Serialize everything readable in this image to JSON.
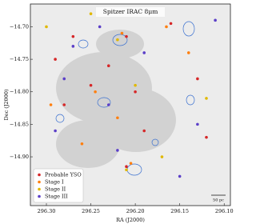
{
  "chart_data": {
    "type": "scatter",
    "title": "Spitzer IRAC 8μm",
    "x_label": "RA (J2000)",
    "y_label": "Dec (J2000)",
    "xlim": [
      296.318,
      296.093
    ],
    "ylim": [
      -14.975,
      -14.665
    ],
    "xticks": [
      {
        "value": 296.3,
        "label": "296.30"
      },
      {
        "value": 296.25,
        "label": "296.25"
      },
      {
        "value": 296.2,
        "label": "296.20"
      },
      {
        "value": 296.15,
        "label": "296.15"
      },
      {
        "value": 296.1,
        "label": "296.10"
      }
    ],
    "yticks": [
      {
        "value": -14.7,
        "label": "−14.70"
      },
      {
        "value": -14.75,
        "label": "−14.75"
      },
      {
        "value": -14.8,
        "label": "−14.80"
      },
      {
        "value": -14.85,
        "label": "−14.85"
      },
      {
        "value": -14.9,
        "label": "−14.90"
      }
    ],
    "grid": false,
    "legend": "lower left",
    "scale_bar": "50 pc",
    "series": [
      {
        "name": "Probable YSO",
        "color": "#d62728",
        "x": [
          296.21,
          296.27,
          296.16,
          296.25,
          296.28,
          296.2,
          296.21,
          296.13,
          296.19,
          296.29,
          296.23,
          296.12
        ],
        "values": [
          -14.715,
          -14.715,
          -14.695,
          -14.79,
          -14.82,
          -14.8,
          -14.915,
          -14.78,
          -14.86,
          -14.75,
          -14.76,
          -14.87
        ]
      },
      {
        "name": "Stage I",
        "color": "#ff7f0e",
        "x": [
          296.215,
          296.165,
          296.205,
          296.245,
          296.295,
          296.22,
          296.14,
          296.26
        ],
        "values": [
          -14.71,
          -14.7,
          -14.91,
          -14.8,
          -14.82,
          -14.84,
          -14.74,
          -14.88
        ]
      },
      {
        "name": "Stage II",
        "color": "#e0b800",
        "x": [
          296.22,
          296.2,
          296.21,
          296.17,
          296.3,
          296.12,
          296.25
        ],
        "values": [
          -14.72,
          -14.79,
          -14.92,
          -14.9,
          -14.7,
          -14.81,
          -14.68
        ]
      },
      {
        "name": "Stage III",
        "color": "#5b3fc8",
        "x": [
          296.27,
          296.28,
          296.23,
          296.19,
          296.11,
          296.29,
          296.15,
          296.24,
          296.22,
          296.13
        ],
        "values": [
          -14.73,
          -14.78,
          -14.82,
          -14.74,
          -14.69,
          -14.86,
          -14.93,
          -14.7,
          -14.89,
          -14.85
        ]
      }
    ]
  }
}
